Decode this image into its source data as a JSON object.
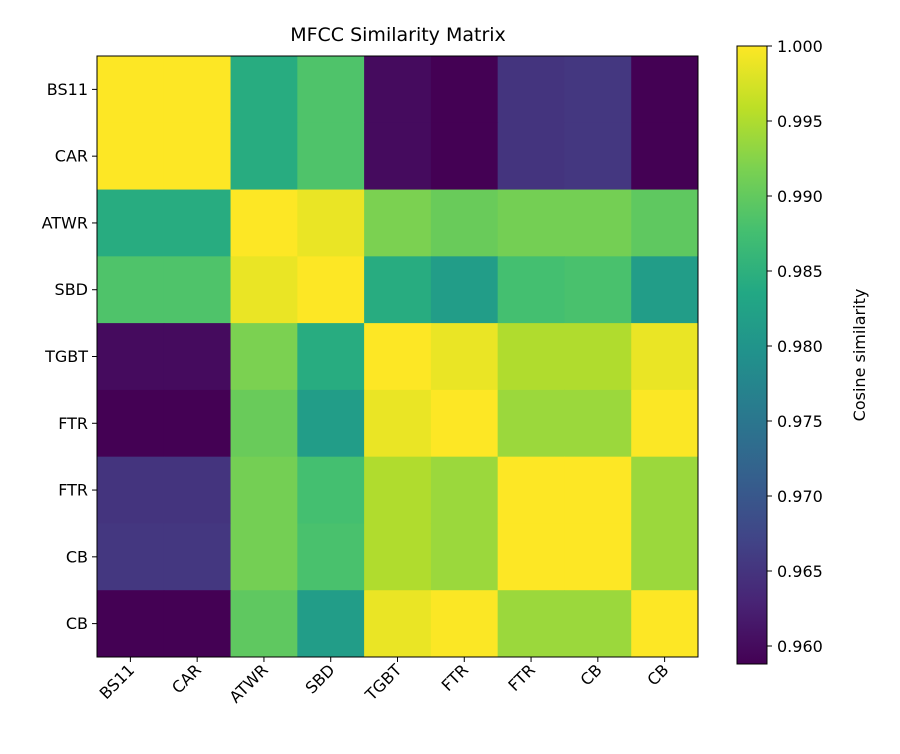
{
  "chart_data": {
    "type": "heatmap",
    "title": "MFCC Similarity Matrix",
    "row_labels": [
      "BS11",
      "CAR",
      "ATWR",
      "SBD",
      "TGBT",
      "FTR",
      "FTR",
      "CB",
      "CB"
    ],
    "col_labels": [
      "BS11",
      "CAR",
      "ATWR",
      "SBD",
      "TGBT",
      "FTR",
      "FTR",
      "CB",
      "CB"
    ],
    "values": [
      [
        1.0,
        1.0,
        0.9843,
        0.9885,
        0.96,
        0.9588,
        0.965,
        0.9654,
        0.9588
      ],
      [
        1.0,
        1.0,
        0.9843,
        0.9885,
        0.96,
        0.9588,
        0.965,
        0.9654,
        0.9588
      ],
      [
        0.9843,
        0.9843,
        1.0,
        0.9988,
        0.9918,
        0.9905,
        0.9913,
        0.9913,
        0.9897
      ],
      [
        0.9885,
        0.9885,
        0.9988,
        1.0,
        0.9843,
        0.9815,
        0.9876,
        0.988,
        0.9815
      ],
      [
        0.96,
        0.96,
        0.9918,
        0.9843,
        1.0,
        0.9988,
        0.9951,
        0.9951,
        0.9988
      ],
      [
        0.9588,
        0.9588,
        0.9905,
        0.9815,
        0.9988,
        1.0,
        0.9938,
        0.9938,
        0.9999
      ],
      [
        0.965,
        0.965,
        0.9913,
        0.9876,
        0.9951,
        0.9938,
        1.0,
        1.0,
        0.9938
      ],
      [
        0.9654,
        0.9654,
        0.9913,
        0.988,
        0.9951,
        0.9938,
        1.0,
        1.0,
        0.9938
      ],
      [
        0.9588,
        0.9588,
        0.9897,
        0.9815,
        0.9988,
        0.9999,
        0.9938,
        0.9938,
        1.0
      ]
    ],
    "colormap": "viridis",
    "vmin": 0.9588,
    "vmax": 1.0,
    "colorbar": {
      "label": "Cosine similarity",
      "ticks": [
        "0.960",
        "0.965",
        "0.970",
        "0.975",
        "0.980",
        "0.985",
        "0.990",
        "0.995",
        "1.000"
      ]
    },
    "grid": false
  }
}
